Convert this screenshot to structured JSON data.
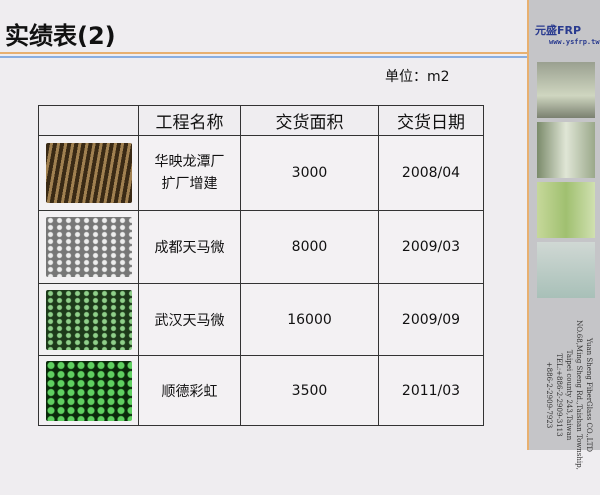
{
  "title": "实绩表(2)",
  "unit": "单位：m2",
  "table": {
    "headers": [
      "",
      "工程名称",
      "交货面积",
      "交货日期"
    ],
    "rows": [
      {
        "name": "华映龙潭厂扩厂增建",
        "area": "3000",
        "date": "2008/04"
      },
      {
        "name": "成都天马微",
        "area": "8000",
        "date": "2009/03"
      },
      {
        "name": "武汉天马微",
        "area": "16000",
        "date": "2009/09"
      },
      {
        "name": "顺德彩虹",
        "area": "3500",
        "date": "2011/03"
      }
    ]
  },
  "sidebar": {
    "logo": "元盛FRP",
    "url": "www.ysfrp.tw",
    "address": [
      "Yuan Sheng FiberGlass CO.,LTD",
      "NO.68,Ming Sheng Rd.,Taishan Township,",
      "Taipei county 243,Taiwan",
      "TEL:+886-2-2909-3113",
      "+886-2-2909-7923"
    ]
  }
}
